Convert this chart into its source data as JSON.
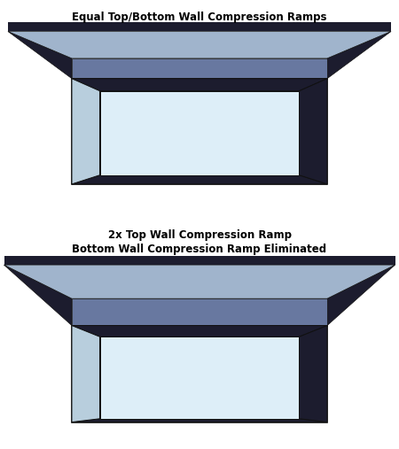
{
  "title1": "Equal Top/Bottom Wall Compression Ramps",
  "title2": "2x Top Wall Compression Ramp\nBottom Wall Compression Ramp Eliminated",
  "bg_color": "#ffffff",
  "colors": {
    "dark_navy": "#1c1c2e",
    "navy2": "#252540",
    "medium_blue": "#6878a0",
    "light_blue": "#8898b8",
    "lighter_blue": "#a0b4cc",
    "pale_blue": "#b8cedd",
    "very_light_blue": "#ccdde8",
    "white_blue": "#ddeef8",
    "outline": "#111111"
  }
}
